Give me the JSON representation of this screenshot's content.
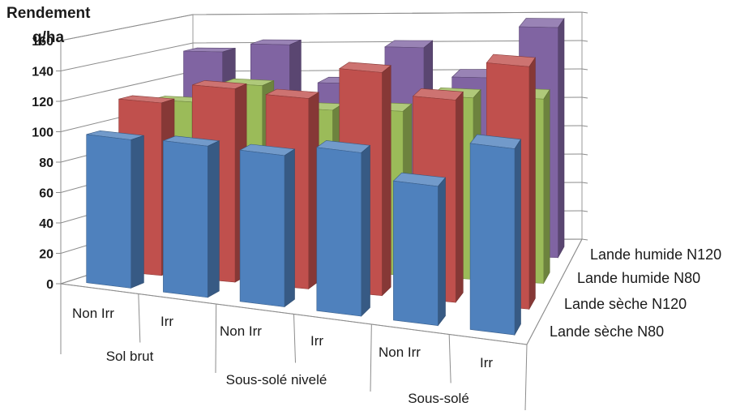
{
  "chart_data": {
    "type": "bar",
    "ylabel": [
      "Rendement",
      "q/ha"
    ],
    "ylim": [
      0,
      160
    ],
    "yticks": [
      "0",
      "20",
      "40",
      "60",
      "80",
      "100",
      "120",
      "140",
      "160"
    ],
    "categories": [
      "Non Irr",
      "Irr",
      "Non Irr",
      "Irr",
      "Non Irr",
      "Irr"
    ],
    "groups": [
      {
        "label": "Sol brut",
        "span": [
          0,
          1
        ]
      },
      {
        "label": "Sous-solé nivelé",
        "span": [
          2,
          3
        ]
      },
      {
        "label": "Sous-solé",
        "span": [
          4,
          5
        ]
      }
    ],
    "series": [
      {
        "name": "Lande sèche N80",
        "values": [
          98,
          100,
          100,
          108,
          92,
          123
        ]
      },
      {
        "name": "Lande sèche N120",
        "values": [
          116,
          130,
          128,
          150,
          136,
          163
        ]
      },
      {
        "name": "Lande humide N80",
        "values": [
          110,
          124,
          110,
          112,
          124,
          126
        ]
      },
      {
        "name": "Lande humide N120",
        "values": [
          138,
          144,
          118,
          144,
          124,
          160
        ]
      }
    ],
    "grid": true,
    "legend": "series depth axis (right)",
    "colors": {
      "Lande sèche N80": "#4F81BD",
      "Lande sèche N120": "#C0504D",
      "Lande humide N80": "#9BBB59",
      "Lande humide N120": "#8064A2"
    }
  }
}
